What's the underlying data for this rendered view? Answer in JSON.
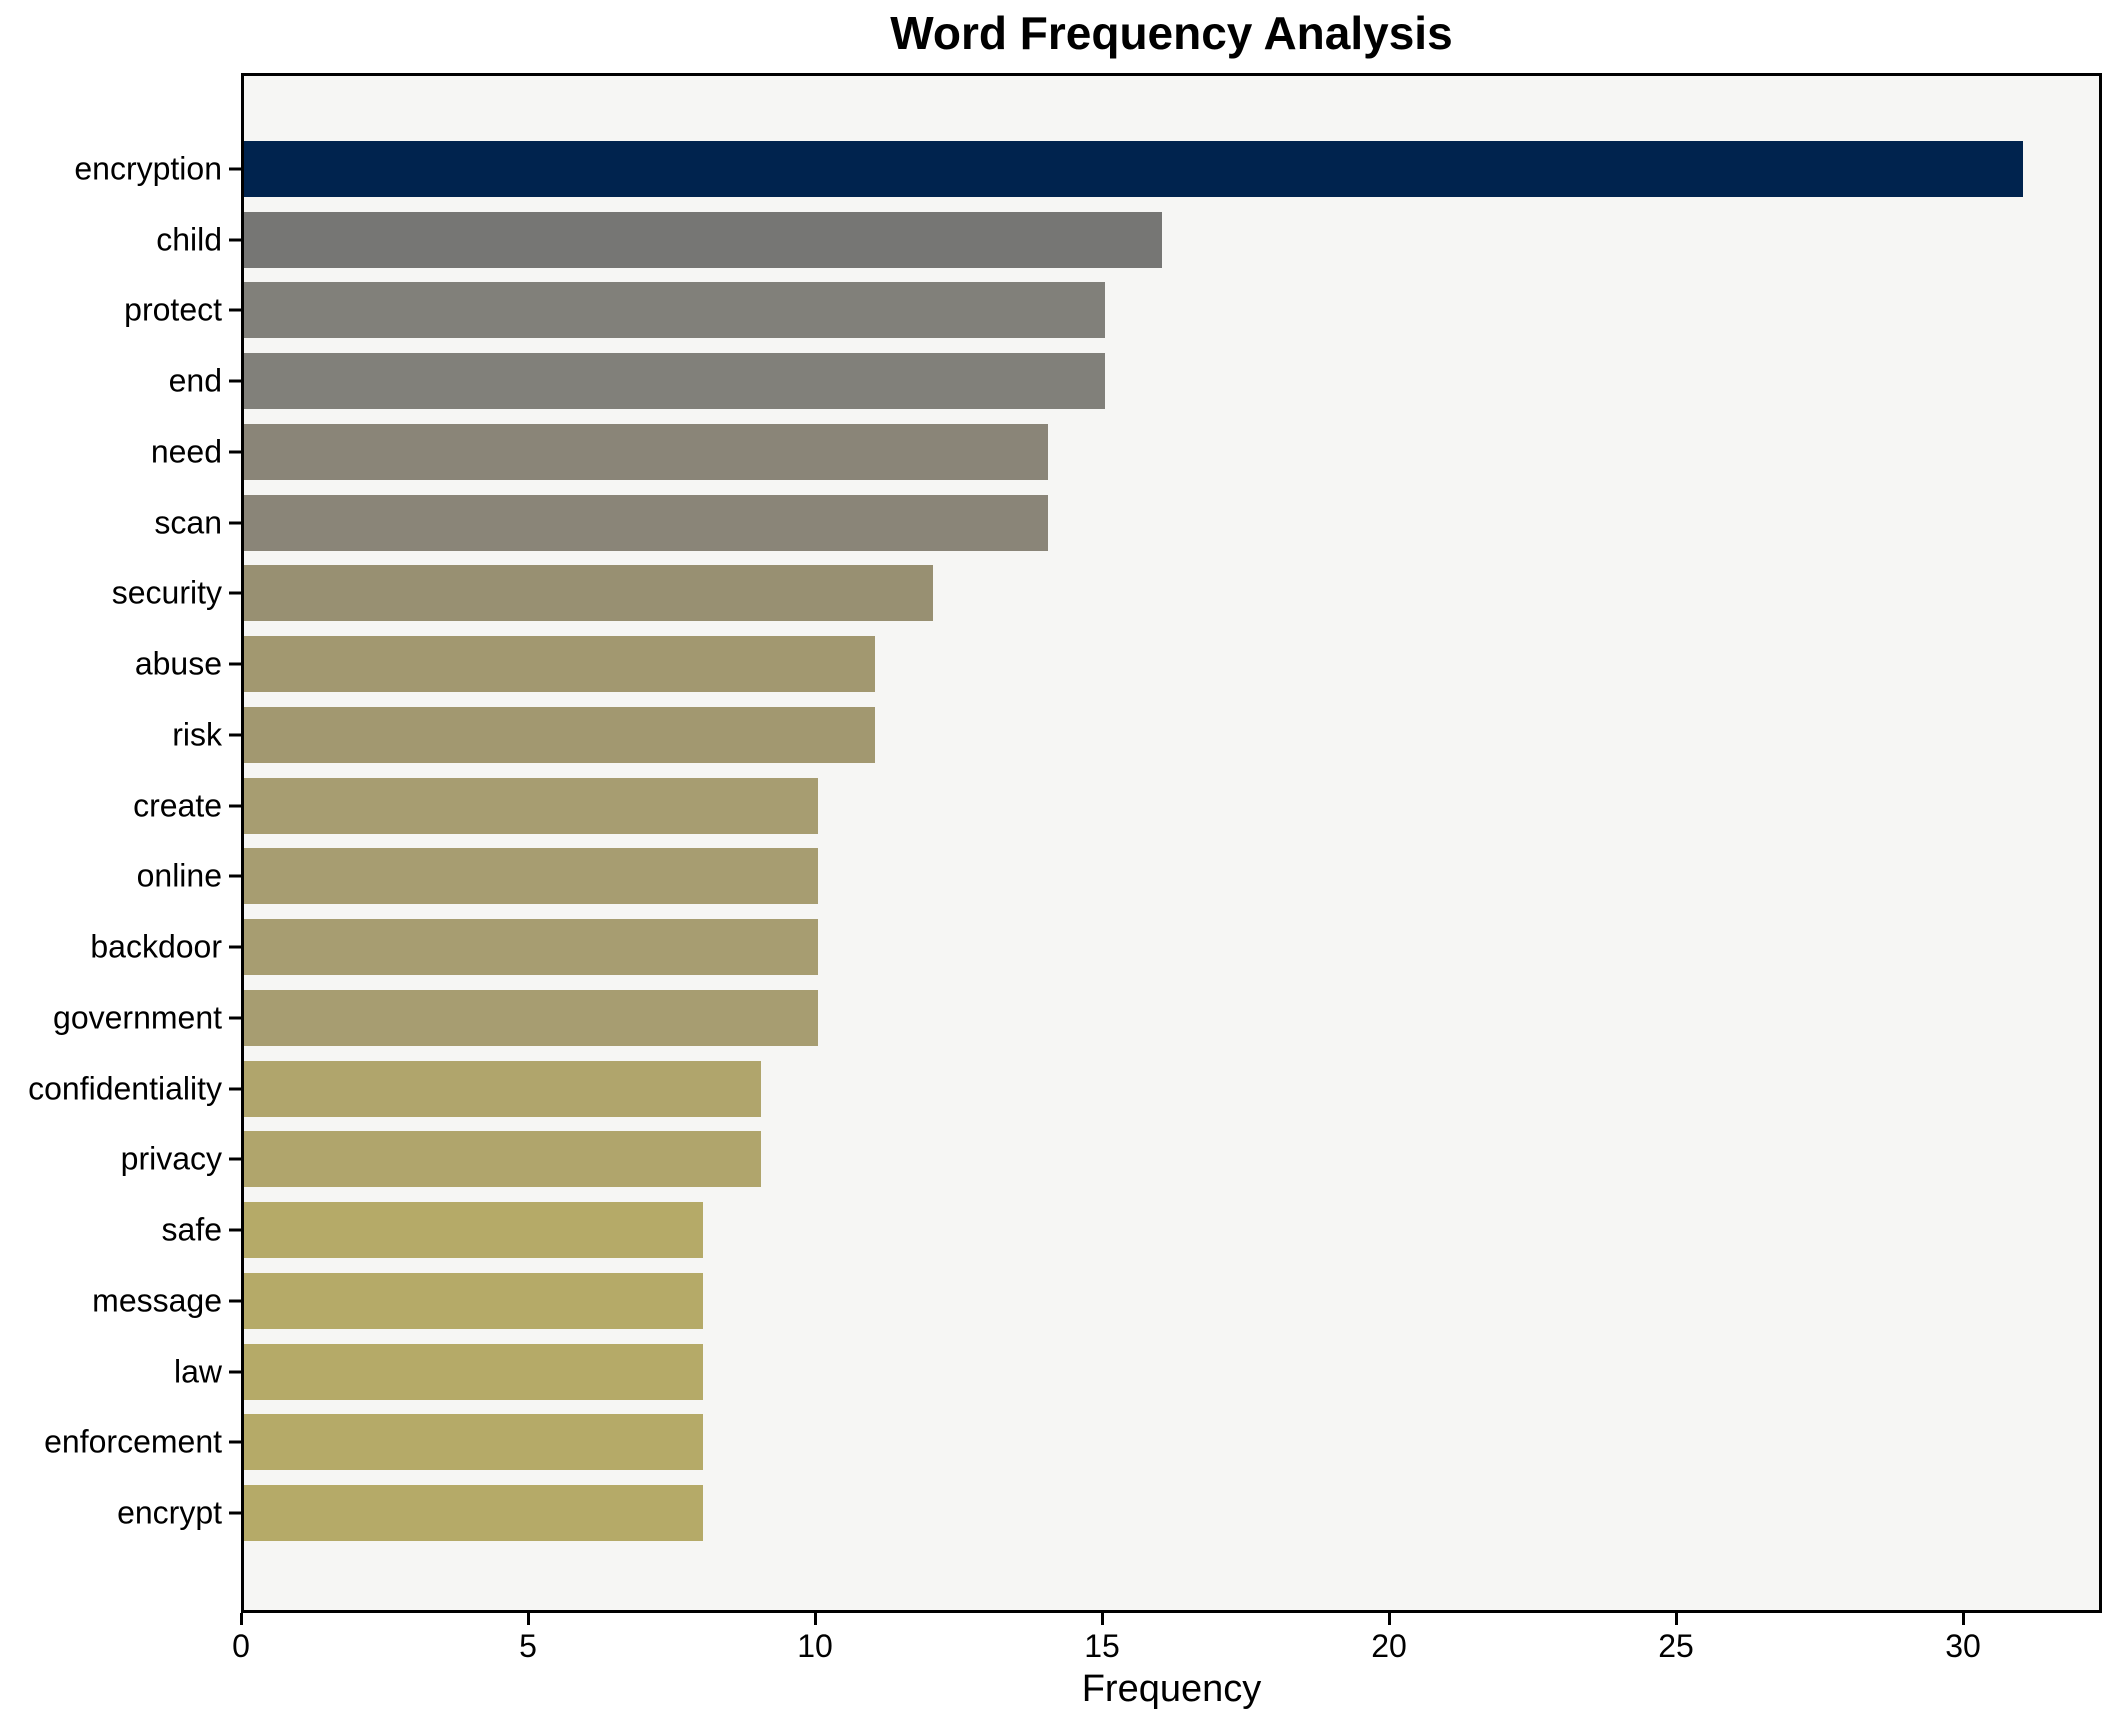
{
  "title": "Word Frequency Analysis",
  "xlabel": "Frequency",
  "chart_data": {
    "type": "bar",
    "orientation": "horizontal",
    "title": "Word Frequency Analysis",
    "xlabel": "Frequency",
    "ylabel": "",
    "grid": false,
    "plot_background": "#f6f6f4",
    "xlim": [
      0,
      32.4
    ],
    "xticks": [
      0,
      5,
      10,
      15,
      20,
      25,
      30
    ],
    "categories": [
      "encryption",
      "child",
      "protect",
      "end",
      "need",
      "scan",
      "security",
      "abuse",
      "risk",
      "create",
      "online",
      "backdoor",
      "government",
      "confidentiality",
      "privacy",
      "safe",
      "message",
      "law",
      "enforcement",
      "encrypt"
    ],
    "values": [
      31,
      16,
      15,
      15,
      14,
      14,
      12,
      11,
      11,
      10,
      10,
      10,
      10,
      9,
      9,
      8,
      8,
      8,
      8,
      8
    ],
    "bar_colors": [
      "#00234E",
      "#767674",
      "#81807A",
      "#81807A",
      "#8A8578",
      "#8A8578",
      "#989072",
      "#A29870",
      "#A29870",
      "#A79D71",
      "#A79D71",
      "#A79D71",
      "#A79D71",
      "#B0A56C",
      "#B0A56C",
      "#B5AA68",
      "#B5AA68",
      "#B5AA68",
      "#B5AA68",
      "#B5AA68"
    ],
    "colormap": "cividis_reversed_by_value",
    "max_color": "#00234E",
    "min_color": "#B5AA68"
  }
}
